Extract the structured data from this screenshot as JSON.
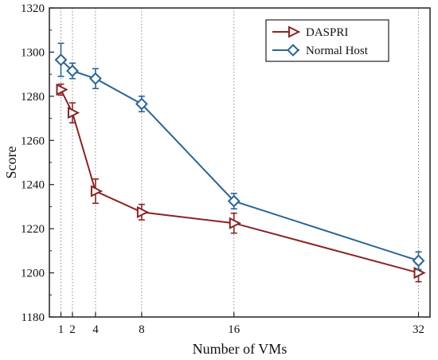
{
  "chart_data": {
    "type": "line",
    "xlabel": "Number of VMs",
    "ylabel": "Score",
    "xlim": [
      0,
      33
    ],
    "ylim": [
      1180,
      1320
    ],
    "x_ticks": [
      1,
      2,
      4,
      8,
      16,
      32
    ],
    "x_tick_labels": [
      "1",
      "2",
      "4",
      "8",
      "16",
      "32"
    ],
    "y_ticks": [
      1180,
      1200,
      1220,
      1240,
      1260,
      1280,
      1300,
      1320
    ],
    "y_tick_labels": [
      "1180",
      "1200",
      "1220",
      "1240",
      "1260",
      "1280",
      "1300",
      "1320"
    ],
    "grid": "dotted vertical lines at x ticks",
    "legend_position": "top-right",
    "x": [
      1,
      2,
      4,
      8,
      16,
      32
    ],
    "series": [
      {
        "name": "DASPRI",
        "marker": "right-triangle",
        "color": "#8b2323",
        "values": [
          1283,
          1272.5,
          1237,
          1227.5,
          1222.5,
          1200
        ],
        "errors": [
          2.5,
          4.5,
          5.5,
          3.5,
          4.5,
          4
        ]
      },
      {
        "name": "Normal Host",
        "marker": "diamond",
        "color": "#2a6496",
        "values": [
          1296.5,
          1291.5,
          1288,
          1276.5,
          1232.5,
          1205.5
        ],
        "errors": [
          7.5,
          3.5,
          4.5,
          3.5,
          3.5,
          4
        ]
      }
    ]
  }
}
